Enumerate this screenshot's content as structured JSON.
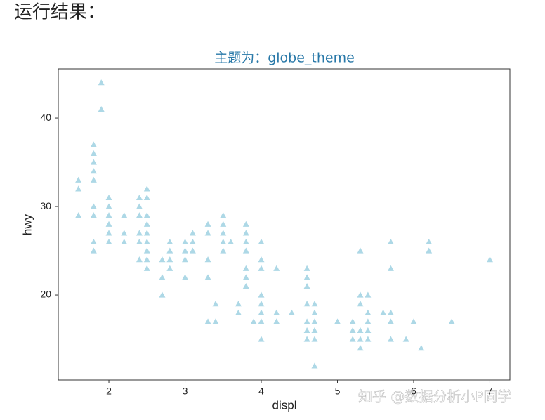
{
  "heading": "运行结果：",
  "watermark": "知乎 @数据分析小P同学",
  "chart_data": {
    "type": "scatter",
    "title": "主题为：globe_theme",
    "title_color": "#2878a8",
    "x_label": "displ",
    "y_label": "hwy",
    "marker": "triangle",
    "color": "#add8e6",
    "xlim": [
      1.336,
      7.263
    ],
    "ylim": [
      10.4,
      45.56
    ],
    "xticks": [
      2,
      3,
      4,
      5,
      6,
      7
    ],
    "yticks": [
      20,
      30,
      40
    ],
    "grid": false,
    "x": [
      1.6,
      1.6,
      1.6,
      1.8,
      1.8,
      1.8,
      1.8,
      1.8,
      1.8,
      1.8,
      1.8,
      1.8,
      1.9,
      1.9,
      2.0,
      2.0,
      2.0,
      2.0,
      2.0,
      2.0,
      2.2,
      2.2,
      2.2,
      2.4,
      2.4,
      2.4,
      2.4,
      2.4,
      2.4,
      2.5,
      2.5,
      2.5,
      2.5,
      2.5,
      2.5,
      2.5,
      2.5,
      2.5,
      2.7,
      2.7,
      2.7,
      2.8,
      2.8,
      2.8,
      2.8,
      3.0,
      3.0,
      3.0,
      3.0,
      3.1,
      3.1,
      3.1,
      3.3,
      3.3,
      3.3,
      3.3,
      3.3,
      3.4,
      3.4,
      3.5,
      3.5,
      3.5,
      3.5,
      3.5,
      3.6,
      3.7,
      3.7,
      3.8,
      3.8,
      3.8,
      3.8,
      3.8,
      3.8,
      3.8,
      3.9,
      4.0,
      4.0,
      4.0,
      4.0,
      4.0,
      4.0,
      4.0,
      4.0,
      4.2,
      4.2,
      4.2,
      4.4,
      4.6,
      4.6,
      4.6,
      4.6,
      4.6,
      4.6,
      4.6,
      4.7,
      4.7,
      4.7,
      4.7,
      4.7,
      4.7,
      5.0,
      5.2,
      5.2,
      5.2,
      5.3,
      5.3,
      5.3,
      5.3,
      5.3,
      5.3,
      5.4,
      5.4,
      5.4,
      5.4,
      5.4,
      5.6,
      5.7,
      5.7,
      5.7,
      5.7,
      5.7,
      5.9,
      6.0,
      6.1,
      6.2,
      6.2,
      6.5,
      7.0
    ],
    "y": [
      33,
      32,
      29,
      37,
      36,
      35,
      34,
      33,
      30,
      29,
      26,
      25,
      44,
      41,
      31,
      30,
      29,
      28,
      27,
      26,
      29,
      27,
      26,
      31,
      30,
      29,
      27,
      26,
      24,
      32,
      31,
      29,
      28,
      27,
      26,
      25,
      24,
      23,
      24,
      22,
      20,
      26,
      25,
      24,
      23,
      26,
      25,
      24,
      22,
      27,
      26,
      25,
      28,
      27,
      24,
      22,
      17,
      19,
      17,
      29,
      28,
      27,
      26,
      25,
      26,
      19,
      18,
      28,
      27,
      26,
      25,
      23,
      22,
      21,
      17,
      26,
      24,
      23,
      20,
      19,
      18,
      17,
      15,
      23,
      18,
      17,
      18,
      23,
      22,
      21,
      19,
      17,
      16,
      15,
      19,
      18,
      17,
      16,
      15,
      12,
      17,
      17,
      16,
      15,
      25,
      20,
      19,
      16,
      15,
      14,
      20,
      18,
      17,
      16,
      15,
      18,
      26,
      23,
      18,
      17,
      15,
      15,
      17,
      14,
      26,
      25,
      17,
      24
    ]
  }
}
